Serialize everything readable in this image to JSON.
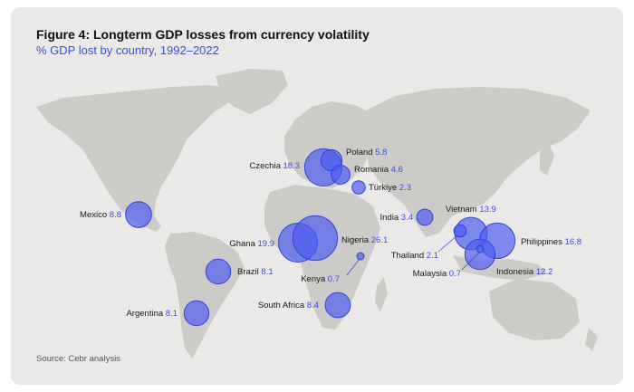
{
  "header": {
    "title": "Figure 4: Longterm GDP losses from currency volatility",
    "subtitle": "% GDP lost by country, 1992–2022"
  },
  "footer": {
    "source": "Source: Cebr analysis"
  },
  "colors": {
    "bubble": "#4b5cf0",
    "value_text": "#3a4de0",
    "land": "#cdcbc8",
    "card": "#ebe9e7"
  },
  "chart_data": {
    "type": "bubble-map",
    "unit": "% GDP",
    "countries": [
      {
        "name": "Poland",
        "value": 5.8
      },
      {
        "name": "Czechia",
        "value": 18.3
      },
      {
        "name": "Romania",
        "value": 4.6
      },
      {
        "name": "Türkiye",
        "value": 2.3
      },
      {
        "name": "Mexico",
        "value": 8.8
      },
      {
        "name": "Ghana",
        "value": 19.9
      },
      {
        "name": "Nigeria",
        "value": 26.1
      },
      {
        "name": "Kenya",
        "value": 0.7
      },
      {
        "name": "Brazil",
        "value": 8.1
      },
      {
        "name": "Argentina",
        "value": 8.1
      },
      {
        "name": "South Africa",
        "value": 8.4
      },
      {
        "name": "India",
        "value": 3.4
      },
      {
        "name": "Vietnam",
        "value": 13.9
      },
      {
        "name": "Thailand",
        "value": 2.1
      },
      {
        "name": "Philippines",
        "value": 16.8
      },
      {
        "name": "Malaysia",
        "value": 0.7
      },
      {
        "name": "Indonesia",
        "value": 12.2
      }
    ]
  }
}
